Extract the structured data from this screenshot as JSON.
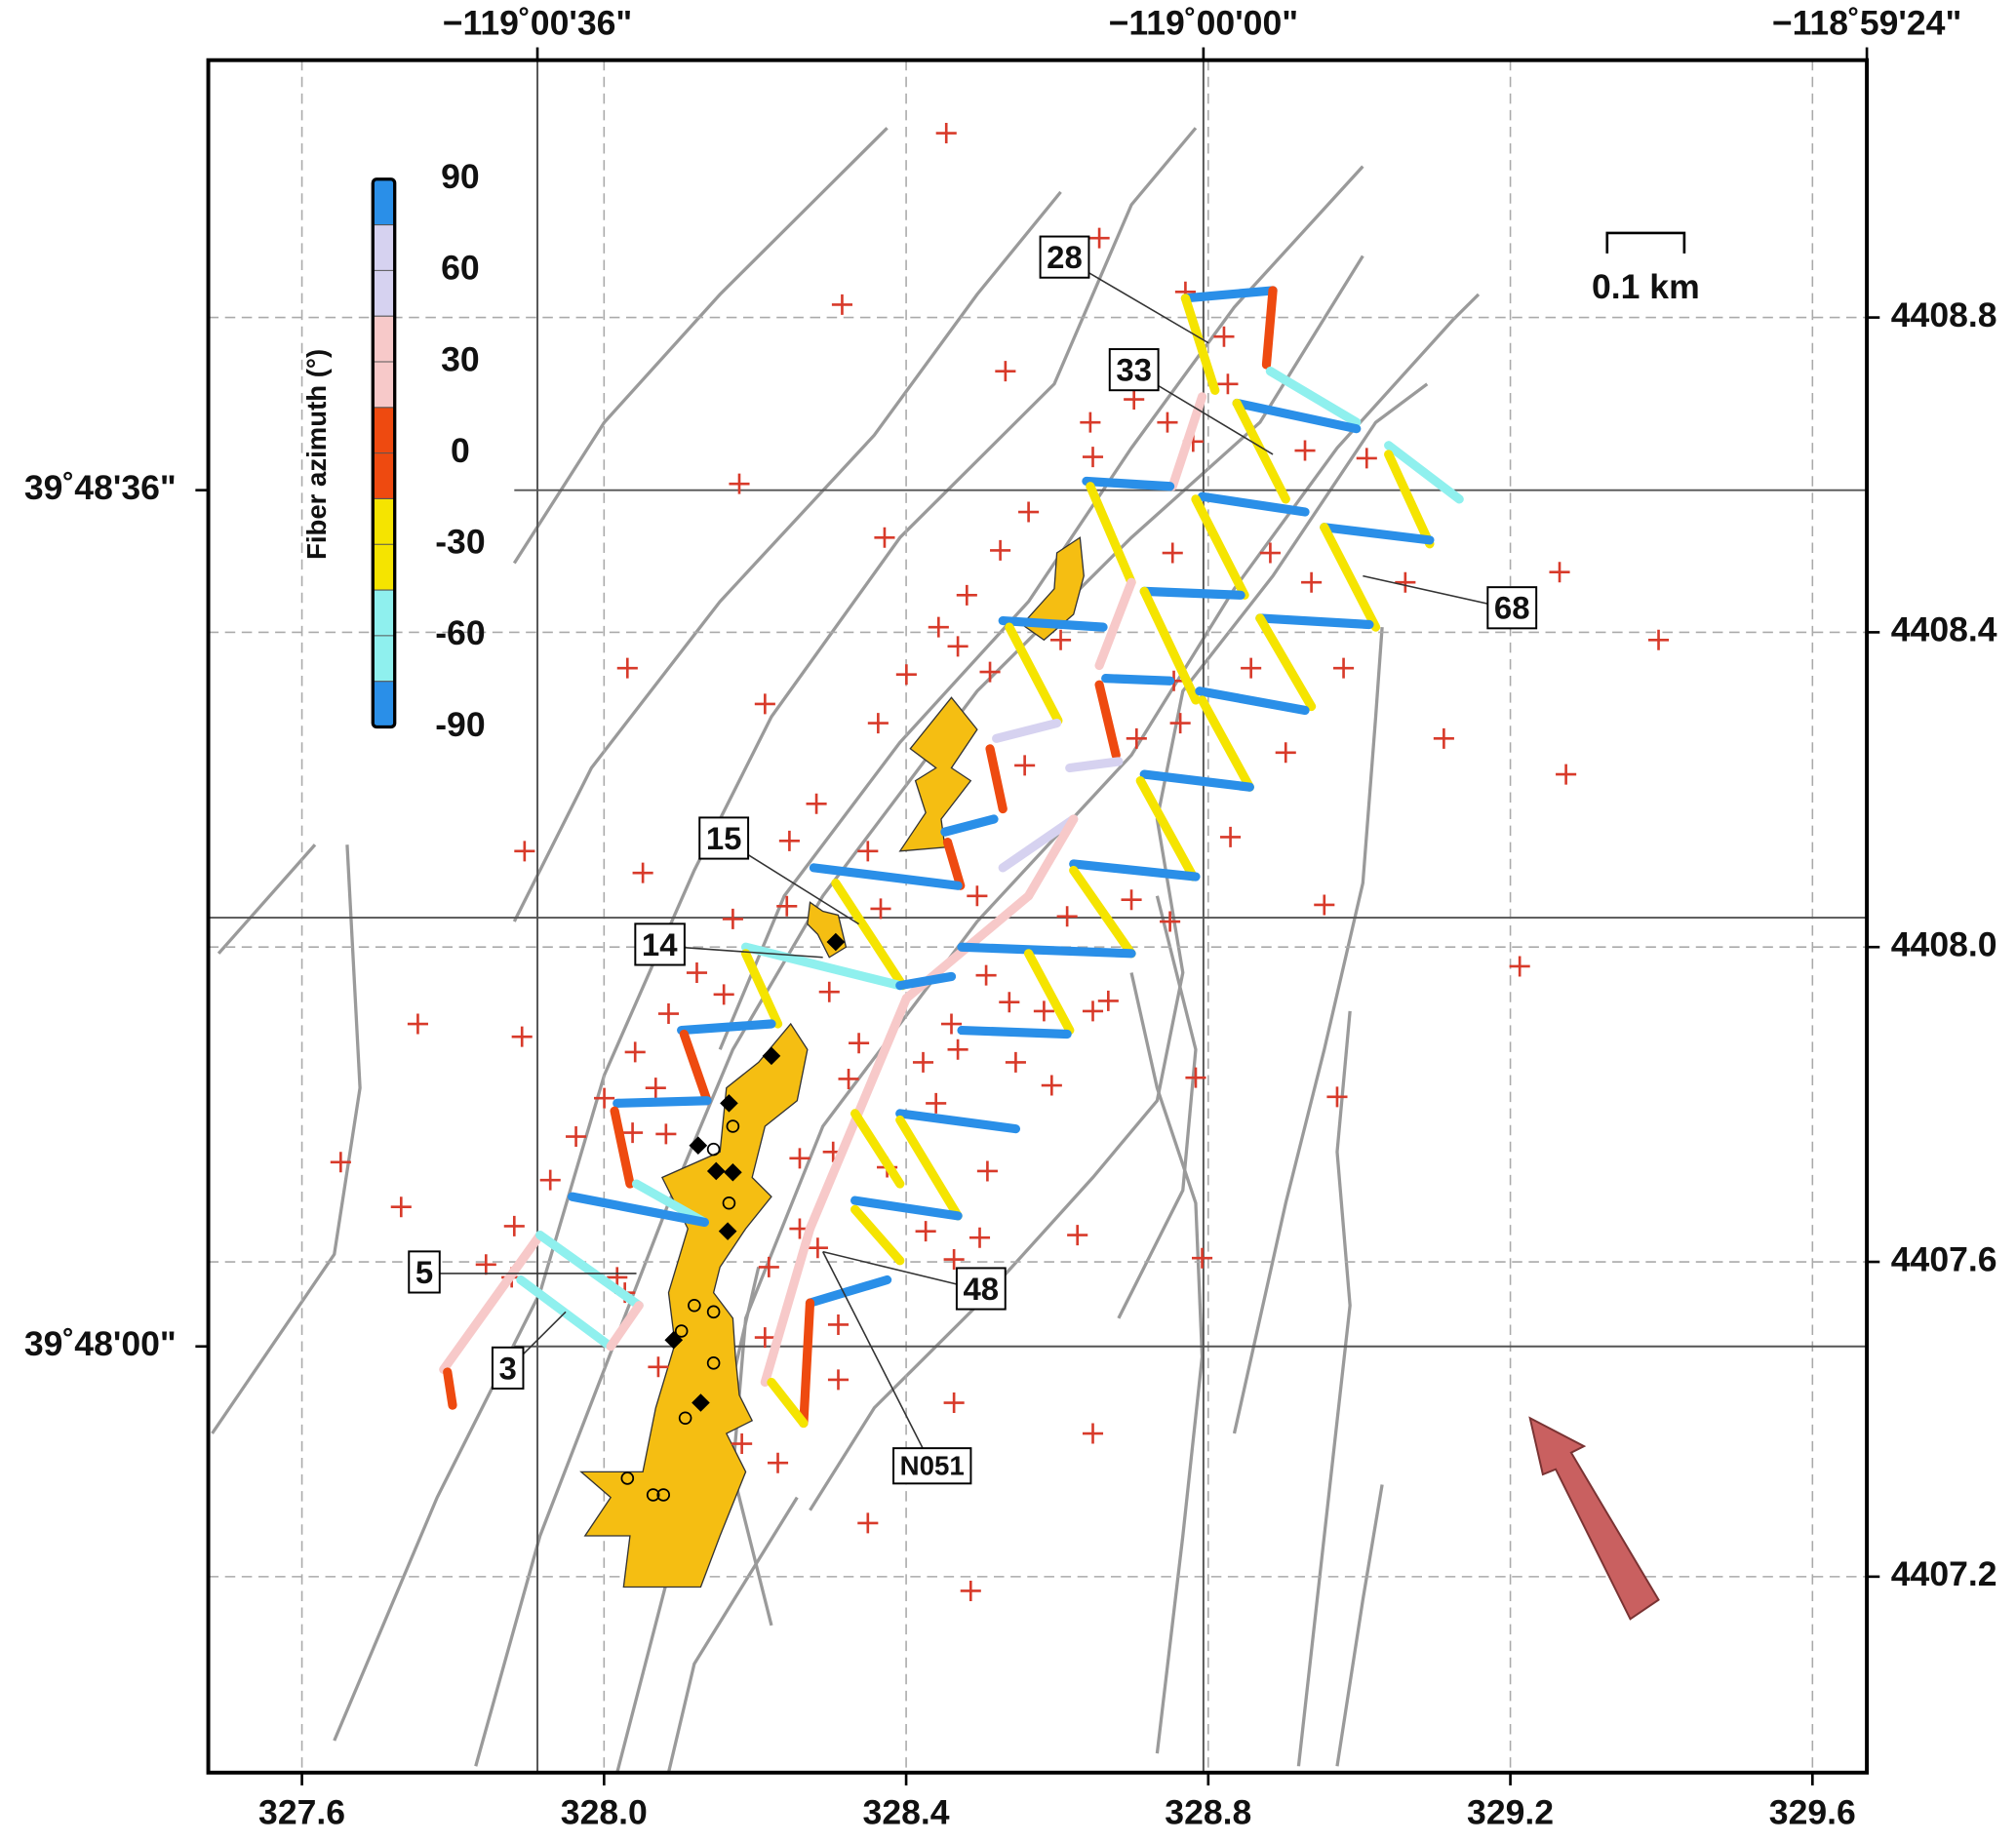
{
  "chart_data": {
    "type": "map",
    "xlim": [
      327.476,
      329.672
    ],
    "ylim": [
      4406.951,
      4409.127
    ],
    "xticks": [
      327.6,
      {
        "value": 328,
        "label": "328.0"
      },
      328.4,
      328.8,
      329.2,
      329.6
    ],
    "yticks": [
      4407.2,
      4407.6,
      {
        "value": 4408,
        "label": "4408.0"
      },
      4408.4,
      4408.8
    ],
    "top_labels": [
      "−119˚00'36\"",
      "−119˚00'00\"",
      "−118˚59'24\""
    ],
    "left_labels": [
      "39˚48'36\"",
      "39˚48'00\""
    ],
    "grid": true,
    "colorbar": {
      "label": "Fiber azimuth (°)",
      "lim": [
        -90,
        90
      ],
      "ticks": [
        90,
        60,
        30,
        0,
        -30,
        -60,
        -90
      ],
      "boundaries": [
        -90,
        -75,
        -45,
        -15,
        15,
        45,
        75,
        90
      ],
      "colors": [
        "#2a8fe8",
        "#8ff0ee",
        "#f5e400",
        "#ee4a10",
        "#f7c9c9",
        "#d6d2f0",
        "#2a8fe8"
      ]
    },
    "scale_bar": "0.1 km",
    "well_labels": [
      "28",
      "33",
      "68",
      "15",
      "14",
      "5",
      "3",
      "48",
      "N051"
    ]
  }
}
